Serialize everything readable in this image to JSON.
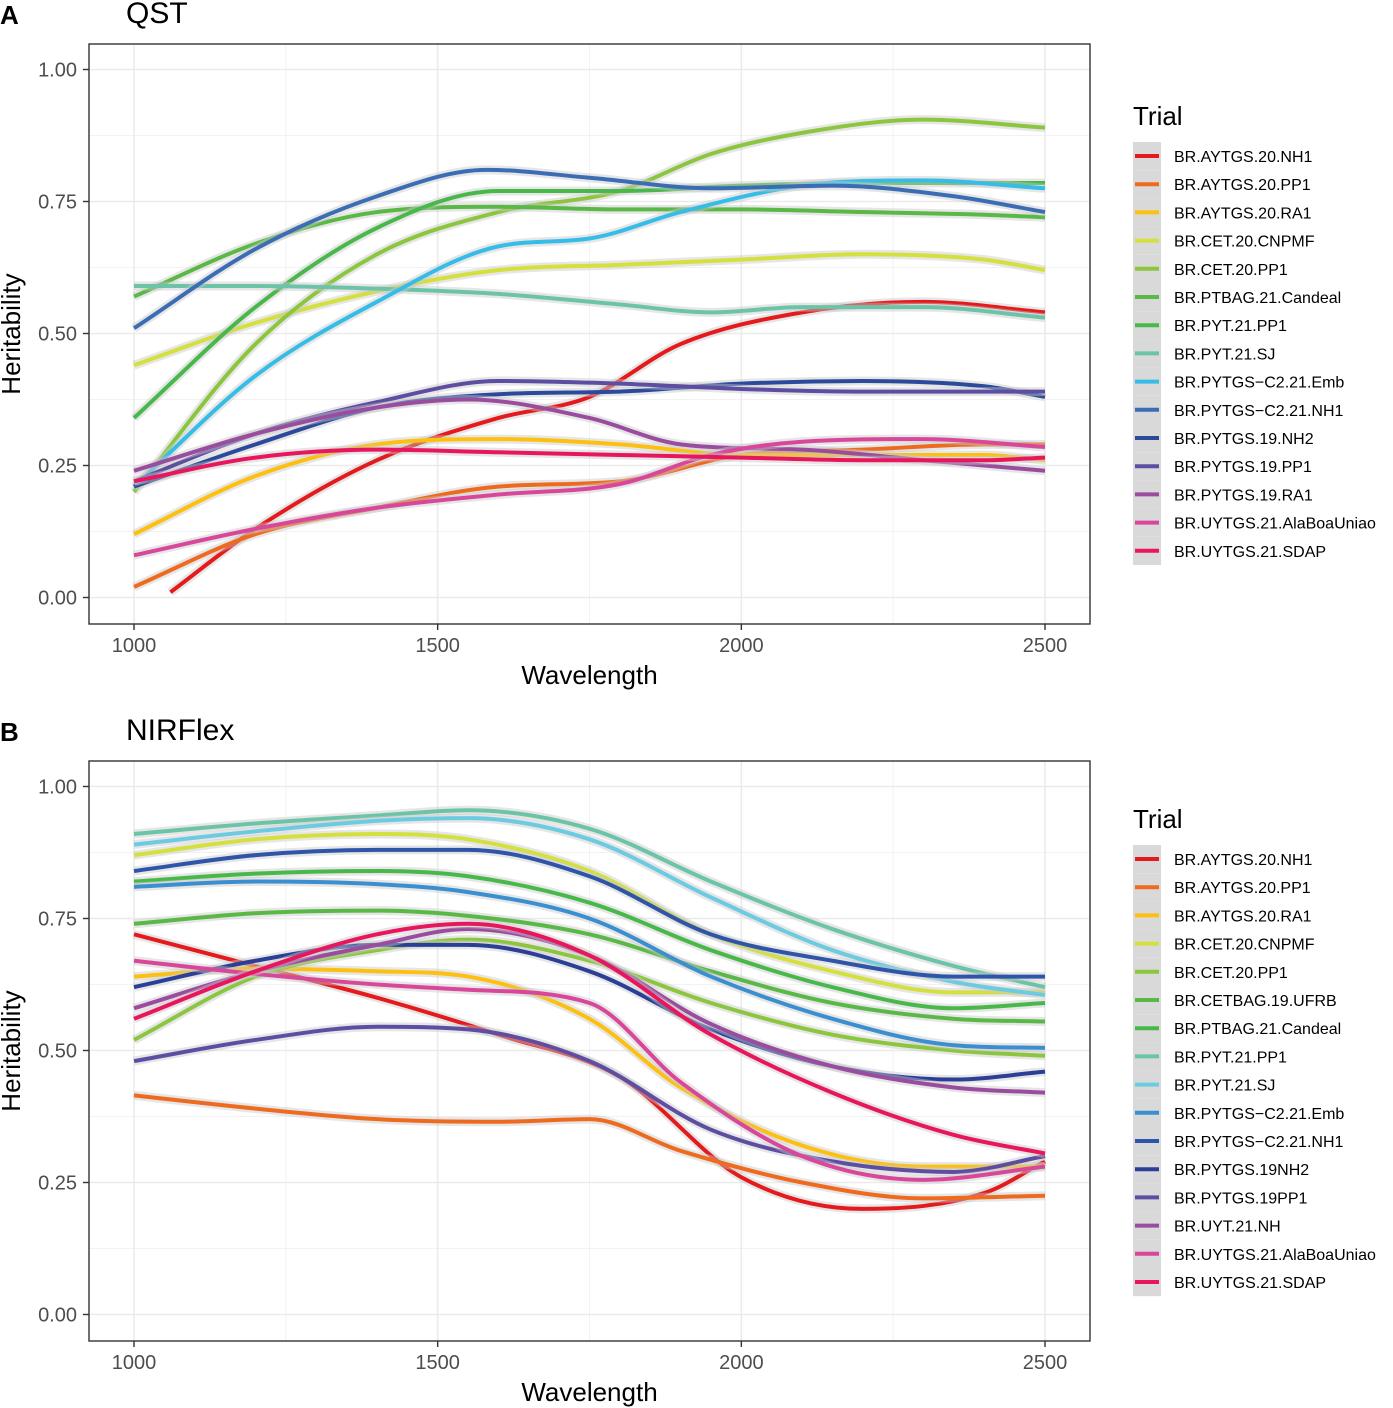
{
  "chart_data": [
    {
      "type": "line",
      "panel_letter": "A",
      "title": "QST",
      "xlabel": "Wavelength",
      "ylabel": "Heritability",
      "xlim": [
        1000,
        2500
      ],
      "ylim": [
        0,
        1
      ],
      "x_ticks": [
        1000,
        1500,
        2000,
        2500
      ],
      "x_tick_labels": [
        "1000",
        "1500",
        "2000",
        "2500"
      ],
      "y_ticks": [
        0,
        0.25,
        0.5,
        0.75,
        1.0
      ],
      "y_tick_labels": [
        "0.00",
        "0.25",
        "0.50",
        "0.75",
        "1.00"
      ],
      "grid": true,
      "legend_title": "Trial",
      "legend_position": "right",
      "series": [
        {
          "name": "BR.AYTGS.20.NH1",
          "color": "#e41a1c",
          "x": [
            1060,
            1200,
            1400,
            1600,
            1750,
            1900,
            2100,
            2300,
            2500
          ],
          "values": [
            0.01,
            0.13,
            0.26,
            0.34,
            0.38,
            0.48,
            0.54,
            0.56,
            0.54
          ]
        },
        {
          "name": "BR.AYTGS.20.PP1",
          "color": "#ee6a1f",
          "x": [
            1000,
            1200,
            1400,
            1600,
            1800,
            2000,
            2200,
            2400,
            2500
          ],
          "values": [
            0.02,
            0.12,
            0.17,
            0.21,
            0.22,
            0.27,
            0.28,
            0.29,
            0.29
          ]
        },
        {
          "name": "BR.AYTGS.20.RA1",
          "color": "#fdc010",
          "x": [
            1000,
            1200,
            1400,
            1600,
            1800,
            2000,
            2200,
            2400,
            2500
          ],
          "values": [
            0.12,
            0.23,
            0.29,
            0.3,
            0.29,
            0.27,
            0.27,
            0.27,
            0.26
          ]
        },
        {
          "name": "BR.CET.20.CNPMF",
          "color": "#d4e03e",
          "x": [
            1000,
            1200,
            1400,
            1600,
            1800,
            2000,
            2200,
            2400,
            2500
          ],
          "values": [
            0.44,
            0.52,
            0.58,
            0.62,
            0.63,
            0.64,
            0.65,
            0.64,
            0.62
          ]
        },
        {
          "name": "BR.CET.20.PP1",
          "color": "#8cc63f",
          "x": [
            1000,
            1200,
            1400,
            1600,
            1800,
            1950,
            2100,
            2300,
            2500
          ],
          "values": [
            0.2,
            0.48,
            0.65,
            0.73,
            0.77,
            0.84,
            0.88,
            0.905,
            0.89
          ]
        },
        {
          "name": "BR.PTBAG.21.Candeal",
          "color": "#5ab946",
          "x": [
            1000,
            1200,
            1400,
            1600,
            1800,
            2000,
            2200,
            2400,
            2500
          ],
          "values": [
            0.57,
            0.67,
            0.73,
            0.74,
            0.735,
            0.735,
            0.73,
            0.725,
            0.72
          ]
        },
        {
          "name": "BR.PYT.21.PP1",
          "color": "#49b84a",
          "x": [
            1000,
            1200,
            1400,
            1600,
            1800,
            2000,
            2200,
            2400,
            2500
          ],
          "values": [
            0.34,
            0.55,
            0.7,
            0.77,
            0.77,
            0.78,
            0.785,
            0.785,
            0.785
          ]
        },
        {
          "name": "BR.PYT.21.SJ",
          "color": "#6cc4a8",
          "x": [
            1000,
            1200,
            1400,
            1600,
            1800,
            1950,
            2100,
            2300,
            2500
          ],
          "values": [
            0.59,
            0.59,
            0.585,
            0.575,
            0.555,
            0.54,
            0.55,
            0.55,
            0.53
          ]
        },
        {
          "name": "BR.PYTGS−C2.21.Emb",
          "color": "#35bde8",
          "x": [
            1000,
            1200,
            1400,
            1600,
            1750,
            1900,
            2100,
            2300,
            2500
          ],
          "values": [
            0.21,
            0.42,
            0.56,
            0.665,
            0.68,
            0.73,
            0.78,
            0.79,
            0.775
          ]
        },
        {
          "name": "BR.PYTGS−C2.21.NH1",
          "color": "#3b6db5",
          "x": [
            1000,
            1200,
            1400,
            1580,
            1750,
            1950,
            2150,
            2350,
            2500
          ],
          "values": [
            0.51,
            0.66,
            0.76,
            0.81,
            0.795,
            0.775,
            0.78,
            0.76,
            0.73
          ]
        },
        {
          "name": "BR.PYTGS.19.NH2",
          "color": "#2c4a9c",
          "x": [
            1000,
            1200,
            1400,
            1600,
            1800,
            2000,
            2200,
            2400,
            2500
          ],
          "values": [
            0.21,
            0.29,
            0.36,
            0.385,
            0.39,
            0.405,
            0.41,
            0.4,
            0.38
          ]
        },
        {
          "name": "BR.PYTGS.19.PP1",
          "color": "#5e4ea2",
          "x": [
            1000,
            1200,
            1400,
            1600,
            1800,
            2000,
            2200,
            2400,
            2500
          ],
          "values": [
            0.22,
            0.31,
            0.37,
            0.41,
            0.405,
            0.395,
            0.39,
            0.39,
            0.39
          ]
        },
        {
          "name": "BR.PYTGS.19.RA1",
          "color": "#9a4c9e",
          "x": [
            1000,
            1200,
            1400,
            1550,
            1750,
            1900,
            2100,
            2300,
            2500
          ],
          "values": [
            0.24,
            0.31,
            0.36,
            0.375,
            0.34,
            0.29,
            0.28,
            0.26,
            0.24
          ]
        },
        {
          "name": "BR.UYTGS.21.AlaBoaUniao",
          "color": "#d9479a",
          "x": [
            1000,
            1200,
            1400,
            1600,
            1800,
            1950,
            2100,
            2300,
            2500
          ],
          "values": [
            0.08,
            0.13,
            0.17,
            0.195,
            0.215,
            0.27,
            0.295,
            0.3,
            0.285
          ]
        },
        {
          "name": "BR.UYTGS.21.SDAP",
          "color": "#e8175d",
          "x": [
            1000,
            1200,
            1400,
            1600,
            1800,
            2000,
            2200,
            2400,
            2500
          ],
          "values": [
            0.22,
            0.265,
            0.28,
            0.275,
            0.27,
            0.265,
            0.26,
            0.26,
            0.265
          ]
        }
      ]
    },
    {
      "type": "line",
      "panel_letter": "B",
      "title": "NIRFlex",
      "xlabel": "Wavelength",
      "ylabel": "Heritability",
      "xlim": [
        1000,
        2500
      ],
      "ylim": [
        0,
        1
      ],
      "x_ticks": [
        1000,
        1500,
        2000,
        2500
      ],
      "x_tick_labels": [
        "1000",
        "1500",
        "2000",
        "2500"
      ],
      "y_ticks": [
        0,
        0.25,
        0.5,
        0.75,
        1.0
      ],
      "y_tick_labels": [
        "0.00",
        "0.25",
        "0.50",
        "0.75",
        "1.00"
      ],
      "grid": true,
      "legend_title": "Trial",
      "legend_position": "right",
      "series": [
        {
          "name": "BR.AYTGS.20.NH1",
          "color": "#e41a1c",
          "x": [
            1000,
            1200,
            1400,
            1600,
            1800,
            2000,
            2200,
            2400,
            2500
          ],
          "values": [
            0.72,
            0.66,
            0.6,
            0.53,
            0.45,
            0.26,
            0.2,
            0.23,
            0.29
          ]
        },
        {
          "name": "BR.AYTGS.20.PP1",
          "color": "#ee6a1f",
          "x": [
            1000,
            1200,
            1400,
            1600,
            1750,
            1900,
            2100,
            2300,
            2500
          ],
          "values": [
            0.415,
            0.39,
            0.37,
            0.365,
            0.37,
            0.31,
            0.25,
            0.22,
            0.225
          ]
        },
        {
          "name": "BR.AYTGS.20.RA1",
          "color": "#fdc010",
          "x": [
            1000,
            1200,
            1400,
            1550,
            1750,
            1900,
            2100,
            2300,
            2500
          ],
          "values": [
            0.64,
            0.655,
            0.65,
            0.64,
            0.56,
            0.43,
            0.32,
            0.28,
            0.28
          ]
        },
        {
          "name": "BR.CET.20.CNPMF",
          "color": "#d4e03e",
          "x": [
            1000,
            1200,
            1400,
            1550,
            1750,
            1950,
            2150,
            2350,
            2500
          ],
          "values": [
            0.87,
            0.9,
            0.91,
            0.9,
            0.84,
            0.72,
            0.65,
            0.61,
            0.61
          ]
        },
        {
          "name": "BR.CET.20.PP1",
          "color": "#8cc63f",
          "x": [
            1000,
            1200,
            1400,
            1550,
            1750,
            1950,
            2150,
            2350,
            2500
          ],
          "values": [
            0.52,
            0.64,
            0.69,
            0.71,
            0.67,
            0.59,
            0.53,
            0.5,
            0.49
          ]
        },
        {
          "name": "BR.CETBAG.19.UFRB",
          "color": "#5ab946",
          "x": [
            1000,
            1200,
            1400,
            1550,
            1750,
            1950,
            2150,
            2350,
            2500
          ],
          "values": [
            0.74,
            0.76,
            0.765,
            0.755,
            0.72,
            0.65,
            0.59,
            0.56,
            0.555
          ]
        },
        {
          "name": "BR.PTBAG.21.Candeal",
          "color": "#49b84a",
          "x": [
            1000,
            1200,
            1400,
            1550,
            1750,
            1950,
            2150,
            2350,
            2500
          ],
          "values": [
            0.82,
            0.835,
            0.84,
            0.83,
            0.78,
            0.69,
            0.62,
            0.58,
            0.59
          ]
        },
        {
          "name": "BR.PYT.21.PP1",
          "color": "#6cc4a8",
          "x": [
            1000,
            1200,
            1400,
            1550,
            1750,
            1950,
            2150,
            2350,
            2500
          ],
          "values": [
            0.91,
            0.93,
            0.945,
            0.955,
            0.92,
            0.82,
            0.73,
            0.66,
            0.62
          ]
        },
        {
          "name": "BR.PYT.21.SJ",
          "color": "#6ccbe0",
          "x": [
            1000,
            1200,
            1400,
            1550,
            1750,
            1950,
            2150,
            2350,
            2500
          ],
          "values": [
            0.89,
            0.915,
            0.935,
            0.94,
            0.9,
            0.79,
            0.69,
            0.63,
            0.605
          ]
        },
        {
          "name": "BR.PYTGS−C2.21.Emb",
          "color": "#3b8fd0",
          "x": [
            1000,
            1200,
            1400,
            1550,
            1750,
            1950,
            2150,
            2350,
            2500
          ],
          "values": [
            0.81,
            0.82,
            0.815,
            0.8,
            0.75,
            0.64,
            0.56,
            0.51,
            0.505
          ]
        },
        {
          "name": "BR.PYTGS−C2.21.NH1",
          "color": "#2e55a8",
          "x": [
            1000,
            1200,
            1400,
            1550,
            1750,
            1950,
            2150,
            2350,
            2500
          ],
          "values": [
            0.84,
            0.87,
            0.88,
            0.88,
            0.83,
            0.72,
            0.67,
            0.64,
            0.64
          ]
        },
        {
          "name": "BR.PYTGS.19NH2",
          "color": "#2c3f96",
          "x": [
            1000,
            1200,
            1400,
            1550,
            1750,
            1950,
            2150,
            2350,
            2500
          ],
          "values": [
            0.62,
            0.67,
            0.7,
            0.7,
            0.65,
            0.54,
            0.47,
            0.445,
            0.46
          ]
        },
        {
          "name": "BR.PYTGS.19PP1",
          "color": "#5e4ea2",
          "x": [
            1000,
            1200,
            1400,
            1550,
            1750,
            1950,
            2150,
            2350,
            2500
          ],
          "values": [
            0.48,
            0.52,
            0.545,
            0.54,
            0.48,
            0.35,
            0.29,
            0.27,
            0.3
          ]
        },
        {
          "name": "BR.UYT.21.NH",
          "color": "#9a4c9e",
          "x": [
            1000,
            1200,
            1400,
            1550,
            1750,
            1950,
            2150,
            2350,
            2500
          ],
          "values": [
            0.58,
            0.65,
            0.7,
            0.73,
            0.68,
            0.55,
            0.47,
            0.43,
            0.42
          ]
        },
        {
          "name": "BR.UYTGS.21.AlaBoaUniao",
          "color": "#d9479a",
          "x": [
            1000,
            1200,
            1400,
            1550,
            1750,
            1900,
            2100,
            2300,
            2500
          ],
          "values": [
            0.67,
            0.645,
            0.625,
            0.615,
            0.59,
            0.44,
            0.3,
            0.255,
            0.28
          ]
        },
        {
          "name": "BR.UYTGS.21.SDAP",
          "color": "#e8175d",
          "x": [
            1000,
            1200,
            1400,
            1550,
            1750,
            1950,
            2150,
            2350,
            2500
          ],
          "values": [
            0.56,
            0.65,
            0.72,
            0.74,
            0.68,
            0.53,
            0.42,
            0.34,
            0.305
          ]
        }
      ]
    }
  ]
}
